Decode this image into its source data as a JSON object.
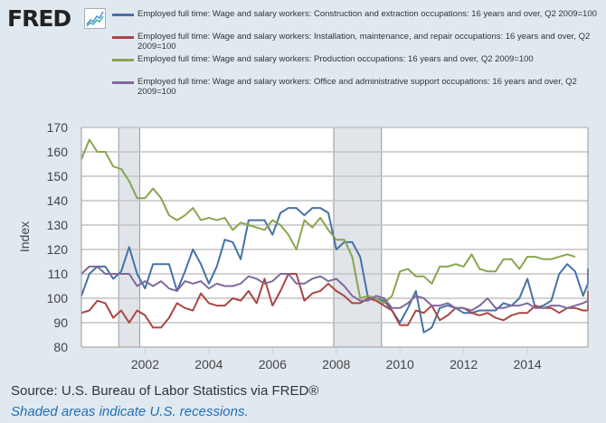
{
  "header": {
    "logo_text": "FRED",
    "logo_icon": "line-chart-icon"
  },
  "footer": {
    "source": "Source: U.S. Bureau of Labor Statistics via FRED®",
    "note": "Shaded areas indicate U.S. recessions."
  },
  "chart_data": {
    "type": "line",
    "title": "",
    "xlabel": "",
    "ylabel": "Index",
    "xlim": [
      2000.0,
      2015.9
    ],
    "ylim": [
      80,
      170
    ],
    "yticks": [
      "80",
      "90",
      "100",
      "110",
      "120",
      "130",
      "140",
      "150",
      "160",
      "170"
    ],
    "xticks": [
      "2002",
      "2004",
      "2006",
      "2008",
      "2010",
      "2012",
      "2014"
    ],
    "grid": true,
    "legend_position": "top",
    "recessions": [
      [
        2001.17,
        2001.83
      ],
      [
        2007.92,
        2009.42
      ]
    ],
    "x_start": 2000.0,
    "x_step": 0.25,
    "series": [
      {
        "name": "Employed full time: Wage and salary workers: Construction and extraction occupations: 16 years and over, Q2 2009=100",
        "color": "#4572a7",
        "values": [
          101,
          110,
          113,
          113,
          108,
          111,
          121,
          110,
          104,
          114,
          114,
          114,
          103,
          111,
          120,
          114,
          106,
          113,
          124,
          123,
          116,
          132,
          132,
          132,
          126,
          135,
          137,
          137,
          134,
          137,
          137,
          135,
          120,
          123,
          123,
          117,
          100,
          100,
          99,
          95,
          90,
          96,
          103,
          86,
          88,
          96,
          97,
          96,
          94,
          94,
          95,
          95,
          95,
          98,
          97,
          100,
          108,
          96,
          97,
          99,
          110,
          114,
          111,
          101,
          106,
          112,
          110,
          108
        ]
      },
      {
        "name": "Employed full time: Wage and salary workers: Installation, maintenance, and repair occupations: 16 years and over, Q2 2009=100",
        "color": "#aa4643",
        "values": [
          94,
          95,
          99,
          98,
          92,
          95,
          90,
          95,
          93,
          88,
          88,
          92,
          98,
          96,
          95,
          102,
          98,
          97,
          97,
          100,
          99,
          103,
          98,
          108,
          97,
          103,
          110,
          110,
          99,
          102,
          103,
          106,
          103,
          101,
          98,
          98,
          100,
          99,
          97,
          95,
          89,
          89,
          95,
          94,
          97,
          91,
          93,
          96,
          96,
          94,
          93,
          94,
          92,
          91,
          93,
          94,
          94,
          97,
          96,
          96,
          94,
          96,
          96,
          95,
          95,
          98,
          103
        ]
      },
      {
        "name": "Employed full time: Wage and salary workers: Production occupations: 16 years and over, Q2 2009=100",
        "color": "#89a54e",
        "values": [
          157,
          165,
          160,
          160,
          154,
          153,
          148,
          141,
          141,
          145,
          141,
          134,
          132,
          134,
          137,
          132,
          133,
          132,
          133,
          128,
          131,
          130,
          129,
          128,
          132,
          130,
          126,
          120,
          132,
          129,
          133,
          128,
          124,
          124,
          117,
          100,
          101,
          100,
          98,
          101,
          111,
          112,
          109,
          109,
          106,
          113,
          113,
          114,
          113,
          118,
          112,
          111,
          111,
          116,
          116,
          112,
          117,
          117,
          116,
          116,
          117,
          118,
          117
        ]
      },
      {
        "name": "Employed full time: Wage and salary workers: Office and administrative support occupations: 16 years and over, Q2 2009=100",
        "color": "#80699b",
        "values": [
          110,
          113,
          113,
          110,
          110,
          110,
          110,
          105,
          107,
          105,
          107,
          104,
          103,
          107,
          106,
          107,
          104,
          106,
          105,
          105,
          106,
          109,
          108,
          106,
          107,
          110,
          110,
          106,
          106,
          108,
          109,
          107,
          108,
          105,
          101,
          99,
          99,
          101,
          100,
          96,
          96,
          98,
          101,
          100,
          97,
          97,
          98,
          96,
          96,
          95,
          97,
          100,
          96,
          96,
          97,
          97,
          98,
          96,
          96,
          97,
          97,
          96,
          97,
          98,
          99,
          97
        ]
      }
    ]
  }
}
